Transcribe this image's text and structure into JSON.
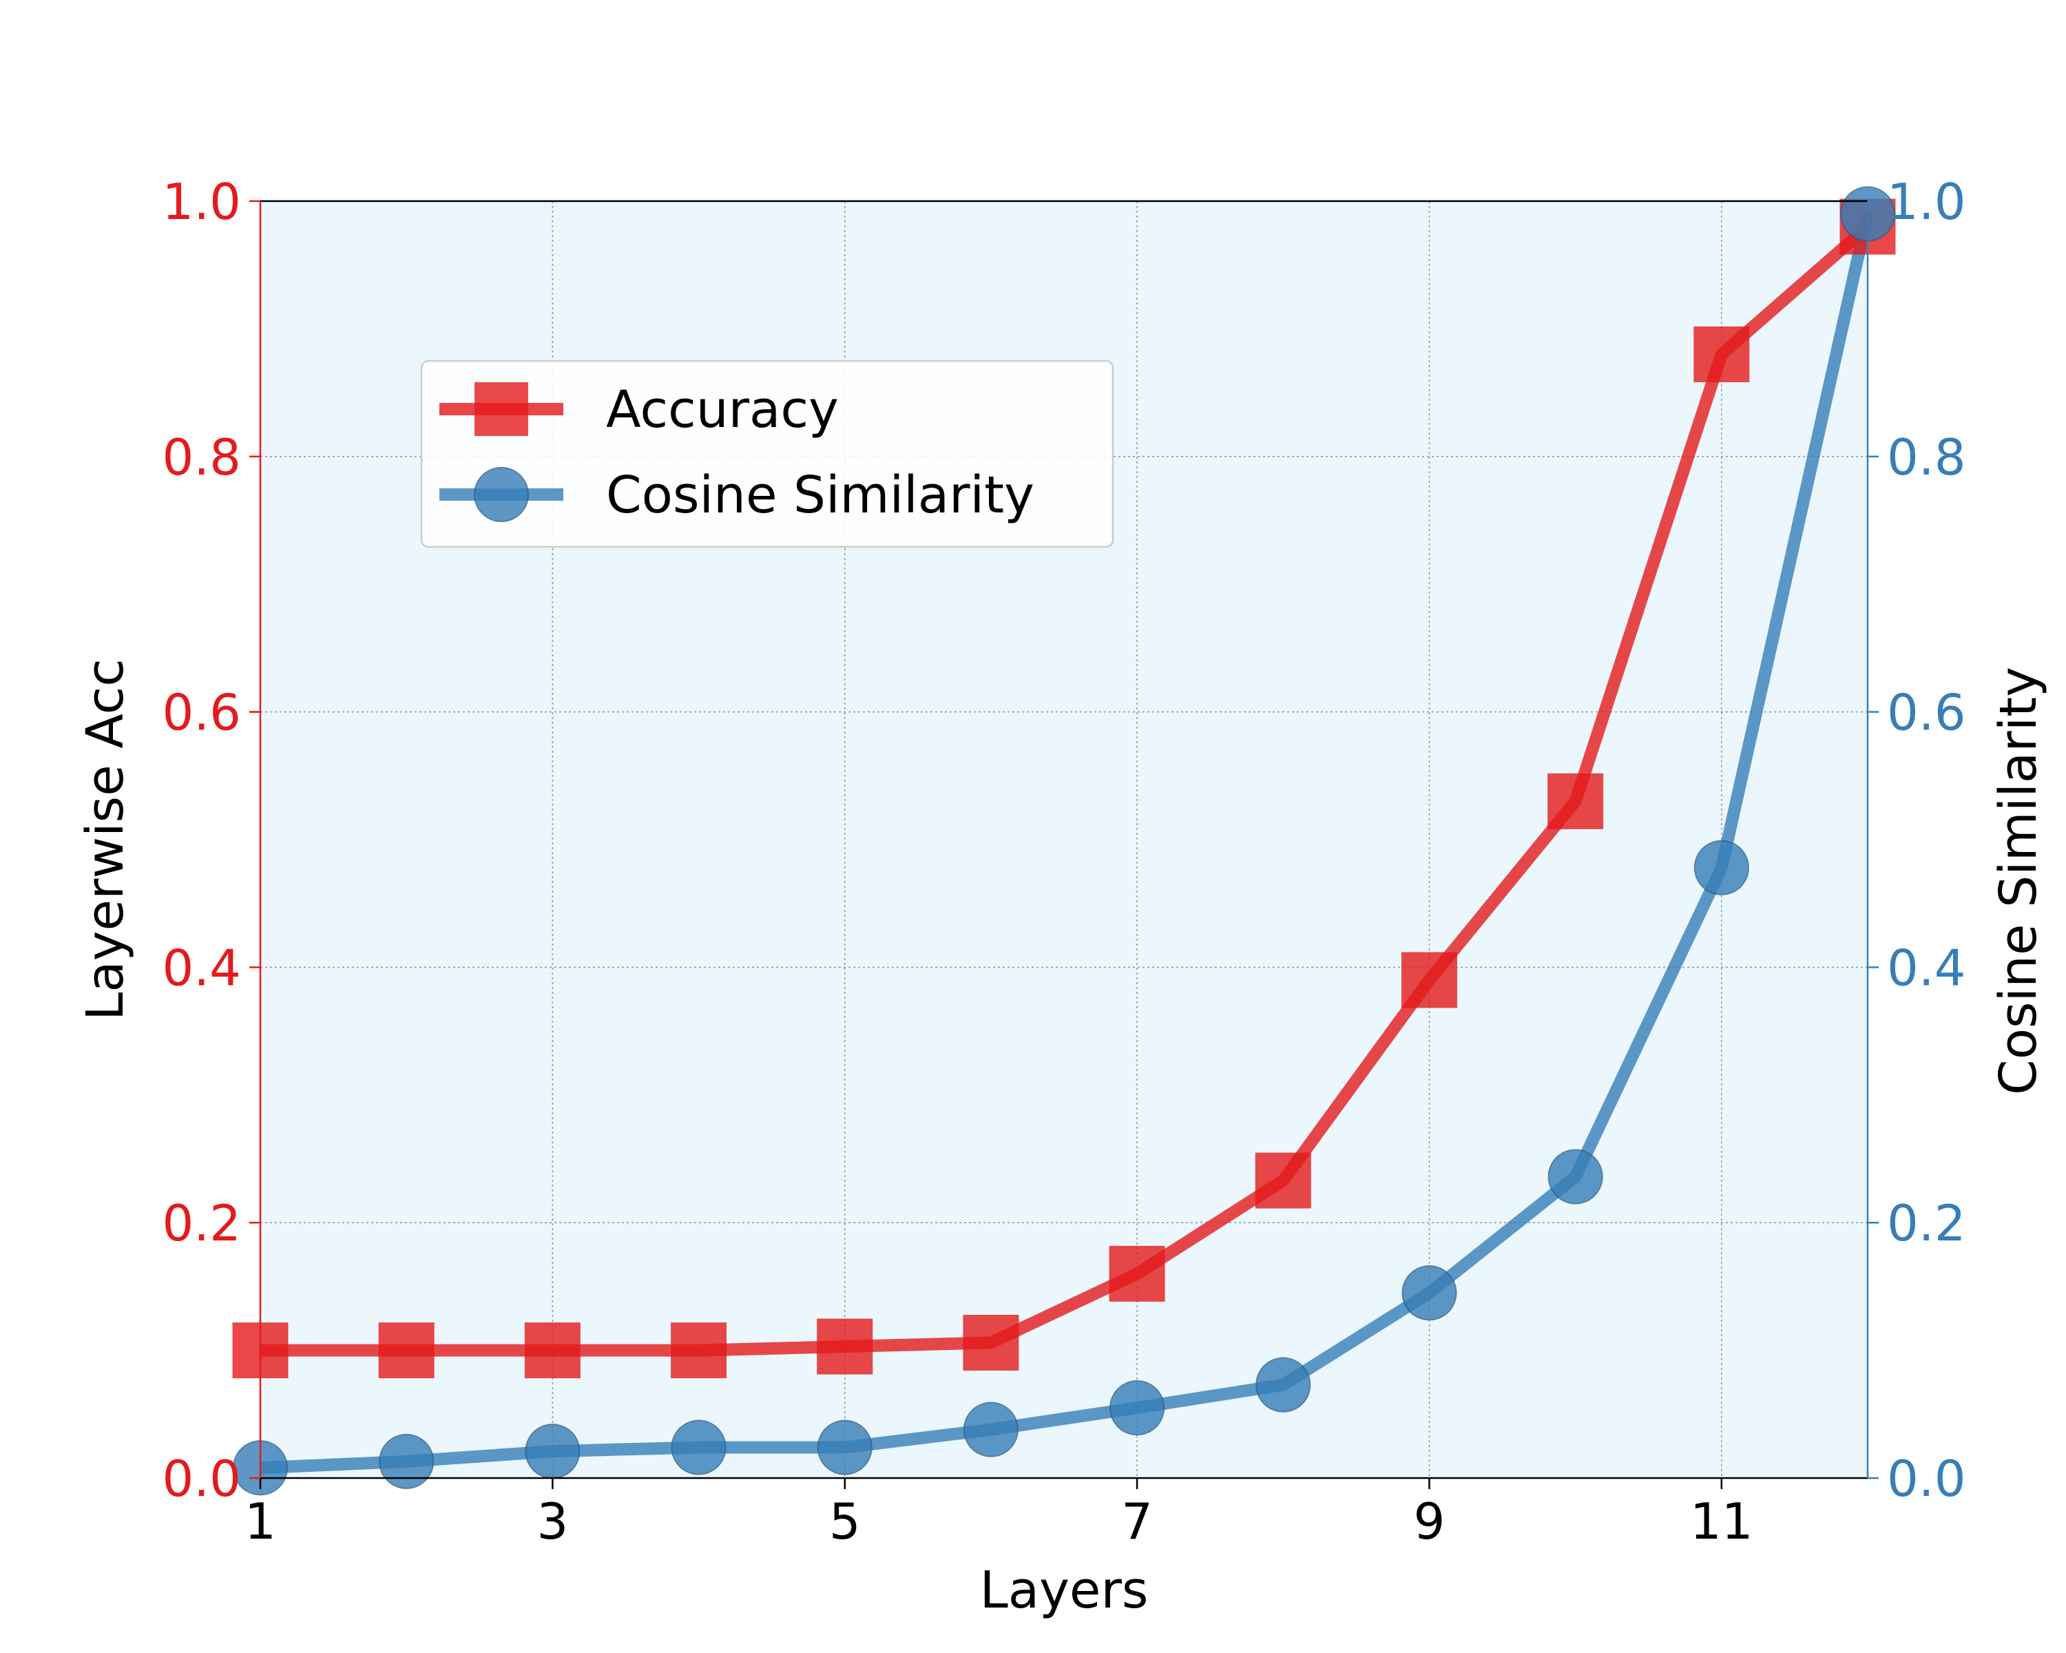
{
  "chart_data": {
    "type": "line",
    "xlabel": "Layers",
    "y_left_label": "Layerwise Acc",
    "y_right_label": "Cosine Similarity",
    "xlim": [
      1,
      12
    ],
    "ylim_left": [
      0.0,
      1.0
    ],
    "ylim_right": [
      0.0,
      1.0
    ],
    "x_ticks": [
      1,
      3,
      5,
      7,
      9,
      11
    ],
    "x_tick_labels": [
      "1",
      "3",
      "5",
      "7",
      "9",
      "11"
    ],
    "y_left_ticks": [
      0.0,
      0.2,
      0.4,
      0.6,
      0.8,
      1.0
    ],
    "y_left_tick_labels": [
      "0.0",
      "0.2",
      "0.4",
      "0.6",
      "0.8",
      "1.0"
    ],
    "y_right_ticks": [
      0.0,
      0.2,
      0.4,
      0.6,
      0.8,
      1.0
    ],
    "y_right_tick_labels": [
      "0.0",
      "0.2",
      "0.4",
      "0.6",
      "0.8",
      "1.0"
    ],
    "grid": true,
    "legend_position": "upper-left",
    "x": [
      1,
      2,
      3,
      4,
      5,
      6,
      7,
      8,
      9,
      10,
      11,
      12
    ],
    "series": [
      {
        "name": "Accuracy",
        "axis": "left",
        "marker": "square",
        "color": "#e41a1c",
        "values": [
          0.1,
          0.1,
          0.1,
          0.1,
          0.103,
          0.106,
          0.16,
          0.233,
          0.39,
          0.53,
          0.88,
          0.98
        ]
      },
      {
        "name": "Cosine Similarity",
        "axis": "right",
        "marker": "circle",
        "color": "#377eb8",
        "values": [
          0.008,
          0.013,
          0.021,
          0.024,
          0.024,
          0.038,
          0.055,
          0.073,
          0.145,
          0.236,
          0.478,
          0.99
        ]
      }
    ],
    "colors": {
      "plot_background": "#ebf7fd",
      "left_axis": "#e41a1c",
      "right_axis": "#377eb8",
      "grid": "#8a9aa6"
    }
  }
}
